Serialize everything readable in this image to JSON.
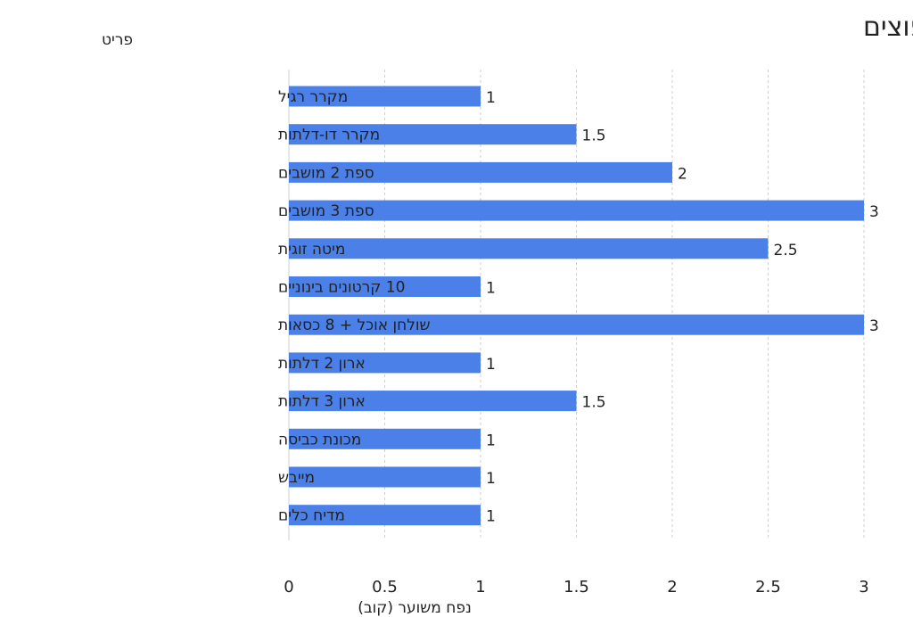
{
  "chart_data": {
    "type": "bar",
    "orientation": "horizontal",
    "title": "הערכת נפח לפי פריטים נפוצים",
    "ylabel": "פריט",
    "xlabel": "נפח משוער (קוב)",
    "categories": [
      "מקרר רגיל",
      "מקרר דו-דלתות",
      "ספת 2 מושבים",
      "ספת 3 מושבים",
      "מיטה זוגית",
      "10 קרטונים בינוניים",
      "שולחן אוכל + 8 כסאות",
      "ארון 2 דלתות",
      "ארון 3 דלתות",
      "מכונת כביסה",
      "מייבש",
      "מדיח כלים"
    ],
    "values": [
      1,
      1.5,
      2,
      3,
      2.5,
      1,
      3,
      1,
      1.5,
      1,
      1,
      1
    ],
    "value_labels": [
      "1",
      "1.5",
      "2",
      "3",
      "2.5",
      "1",
      "3",
      "1",
      "1.5",
      "1",
      "1",
      "1"
    ],
    "xlim": [
      0,
      3
    ],
    "xticks": [
      0,
      0.5,
      1,
      1.5,
      2,
      2.5,
      3
    ],
    "xtick_labels": [
      "0",
      "0.5",
      "1",
      "1.5",
      "2",
      "2.5",
      "3"
    ],
    "grid": "vertical dashed",
    "legend": "none",
    "bar_color": "#4a80e8"
  }
}
